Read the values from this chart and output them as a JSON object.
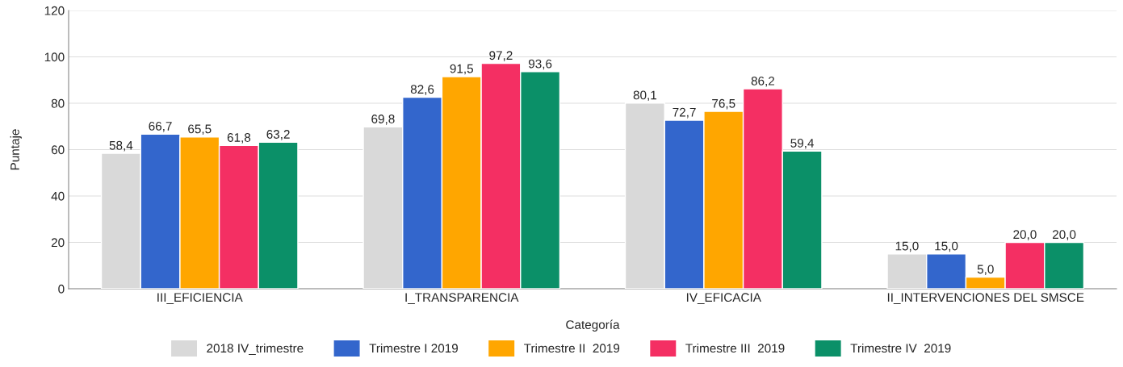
{
  "chart_data": {
    "type": "bar",
    "xlabel": "Categoría",
    "ylabel": "Puntaje",
    "categories": [
      "III_EFICIENCIA",
      "I_TRANSPARENCIA",
      "IV_EFICACIA",
      "II_INTERVENCIONES DEL SMSCE"
    ],
    "series": [
      {
        "name": "2018 IV_trimestre",
        "color": "#d9d9d9",
        "values": [
          58.4,
          69.8,
          80.1,
          15.0
        ],
        "value_labels": [
          "58,4",
          "69,8",
          "80,1",
          "15,0"
        ]
      },
      {
        "name": "Trimestre I 2019",
        "color": "#3366cc",
        "values": [
          66.7,
          82.6,
          72.7,
          15.0
        ],
        "value_labels": [
          "66,7",
          "82,6",
          "72,7",
          "15,0"
        ]
      },
      {
        "name": "Trimestre II  2019",
        "color": "#ffa600",
        "values": [
          65.5,
          91.5,
          76.5,
          5.0
        ],
        "value_labels": [
          "65,5",
          "91,5",
          "76,5",
          "5,0"
        ]
      },
      {
        "name": "Trimestre III  2019",
        "color": "#f42f63",
        "values": [
          61.8,
          97.2,
          86.2,
          20.0
        ],
        "value_labels": [
          "61,8",
          "97,2",
          "86,2",
          "20,0"
        ]
      },
      {
        "name": "Trimestre IV  2019",
        "color": "#0b9068",
        "values": [
          63.2,
          93.6,
          59.4,
          20.0
        ],
        "value_labels": [
          "63,2",
          "93,6",
          "59,4",
          "20,0"
        ]
      }
    ],
    "ylim": [
      0,
      120
    ],
    "yticks": [
      0,
      20,
      40,
      60,
      80,
      100,
      120
    ],
    "grid": "y",
    "legend": "bottom"
  }
}
